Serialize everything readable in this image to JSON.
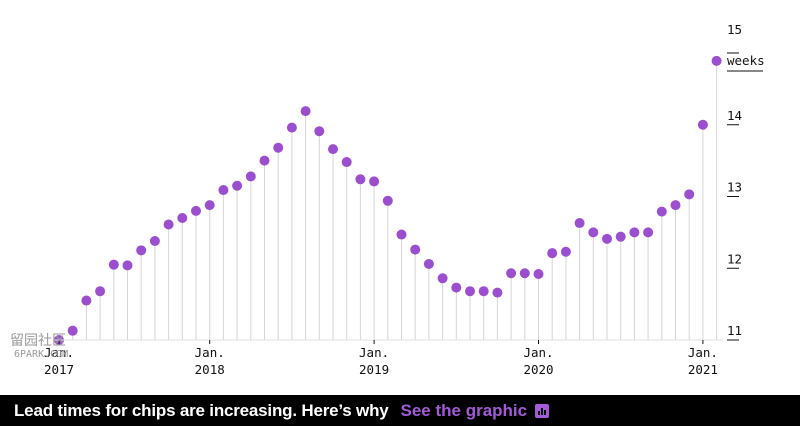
{
  "chart_data": {
    "type": "lollipop",
    "ylabel": "weeks",
    "ylim": [
      11,
      15
    ],
    "yticks": [
      11,
      12,
      13,
      14,
      15
    ],
    "xticks": [
      {
        "line1": "Jan.",
        "line2": "2017",
        "index": 0
      },
      {
        "line1": "Jan.",
        "line2": "2018",
        "index": 11
      },
      {
        "line1": "Jan.",
        "line2": "2019",
        "index": 23
      },
      {
        "line1": "Jan.",
        "line2": "2020",
        "index": 35
      },
      {
        "line1": "Jan.",
        "line2": "2021",
        "index": 47
      }
    ],
    "values": [
      11.0,
      11.13,
      11.55,
      11.68,
      12.05,
      12.04,
      12.25,
      12.38,
      12.61,
      12.7,
      12.8,
      12.88,
      13.09,
      13.15,
      13.28,
      13.5,
      13.68,
      13.96,
      14.19,
      13.91,
      13.66,
      13.48,
      13.24,
      13.21,
      12.94,
      12.47,
      12.26,
      12.06,
      11.86,
      11.73,
      11.68,
      11.68,
      11.66,
      11.93,
      11.93,
      11.92,
      12.21,
      12.23,
      12.63,
      12.5,
      12.41,
      12.44,
      12.5,
      12.5,
      12.79,
      12.88,
      13.03,
      14.0,
      14.89
    ],
    "color": "#9b4fcf"
  },
  "watermark": {
    "text": "留园社区",
    "sub": "6PARK.COM"
  },
  "banner": {
    "headline": "Lead times for chips are increasing. Here’s why",
    "link": "See the graphic",
    "link_icon": "bar-chart-icon"
  }
}
